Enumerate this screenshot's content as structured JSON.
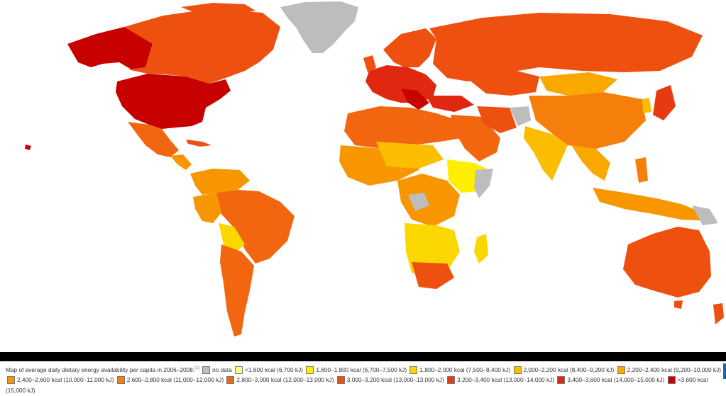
{
  "caption": {
    "text": "Map of average daily dietary energy availability per capita in 2006–2008.",
    "ref": "[1]"
  },
  "legend": [
    {
      "label": "no data",
      "color": "#bdbdbd"
    },
    {
      "label": "<1,600 kcal (6,700 kJ)",
      "color": "#ffff80"
    },
    {
      "label": "1,600–1,800 kcal (6,700–7,500 kJ)",
      "color": "#ffee00"
    },
    {
      "label": "1,800–2,000 kcal (7,500–8,400 kJ)",
      "color": "#fbd700"
    },
    {
      "label": "2,000–2,200 kcal (8,400–9,200 kJ)",
      "color": "#fbbd00"
    },
    {
      "label": "2,200–2,400 kcal (9,200–10,000 kJ)",
      "color": "#f9a800"
    },
    {
      "label": "2,400–2,600 kcal (10,000–11,000 kJ)",
      "color": "#f89600"
    },
    {
      "label": "2,600–2,800 kcal (11,000–12,000 kJ)",
      "color": "#f57f0a"
    },
    {
      "label": "2,800–3,000 kcal (12,000–13,000 kJ)",
      "color": "#f26610"
    },
    {
      "label": "3,000–3,200 kcal (13,000–13,000 kJ)",
      "color": "#ee5010"
    },
    {
      "label": "3,200–3,400 kcal (13,000–14,000 kJ)",
      "color": "#e83a10"
    },
    {
      "label": "3,400–3,600 kcal (14,000–15,000 kJ)",
      "color": "#e02810"
    },
    {
      "label": ">3,600 kcal (15,000 kJ)",
      "color": "#c70000"
    }
  ]
}
